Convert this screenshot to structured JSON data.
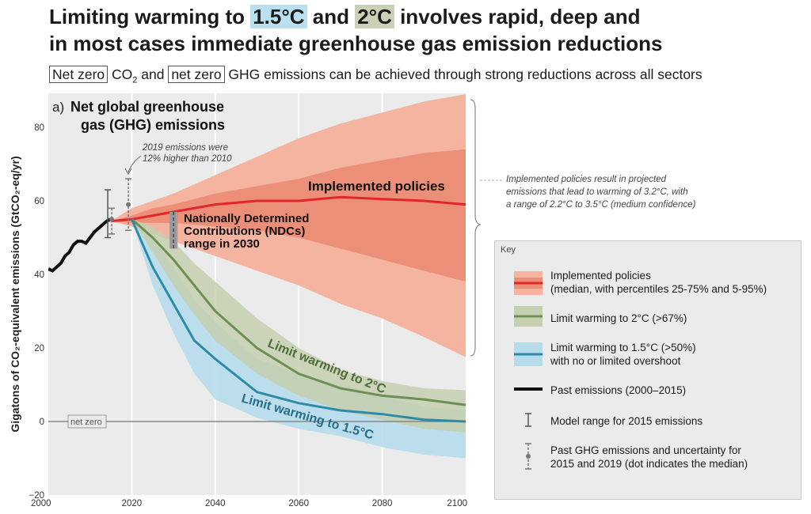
{
  "headline": {
    "pre": "Limiting warming to ",
    "hl1": "1.5°C",
    "mid": " and ",
    "hl2": "2°C",
    "post": " involves rapid, deep and",
    "line2": "in most cases immediate greenhouse gas emission reductions"
  },
  "subtitle": {
    "box1": "Net zero",
    "co2": " CO",
    "co2_sub": "2",
    "and": " and ",
    "box2": "net zero",
    "rest": " GHG emissions can be achieved through strong reductions across all sectors"
  },
  "colors": {
    "implemented_band": "#f4b4a0",
    "implemented_core": "#ec8f78",
    "implemented_line": "#e3262e",
    "two_c_band": "#c6cfb0",
    "two_c_line": "#6d8f55",
    "one_five_band": "#b6dcec",
    "one_five_line": "#2f8aa6",
    "past_line": "#111111",
    "plot_bg": "#ebebeb"
  },
  "chart_data": {
    "type": "line",
    "panel_title": "a) Net global greenhouse gas (GHG) emissions",
    "panel_title_lines": [
      "Net global greenhouse",
      "gas (GHG) emissions"
    ],
    "panel_letter": "a)",
    "ylabel": "Gigatons of CO₂-equivalent emissions (GtCO₂-eq/yr)",
    "xlim": [
      2000,
      2100
    ],
    "ylim": [
      -20,
      95
    ],
    "x_ticks": [
      2000,
      2020,
      2040,
      2060,
      2080,
      2100
    ],
    "y_ticks": [
      -20,
      0,
      20,
      40,
      60,
      80
    ],
    "series": [
      {
        "name": "Implemented policies",
        "x": [
          2015,
          2020,
          2025,
          2030,
          2040,
          2050,
          2060,
          2070,
          2080,
          2090,
          2100
        ],
        "median": [
          54.5,
          55,
          56,
          57,
          59,
          60,
          60,
          61,
          60.5,
          60,
          59
        ],
        "p25": [
          54.5,
          54,
          54,
          54,
          53,
          52,
          50,
          47,
          44,
          41,
          38
        ],
        "p75": [
          54.5,
          56,
          58,
          59,
          62,
          64,
          66,
          69,
          71,
          73,
          74
        ],
        "p5": [
          54.5,
          53,
          51,
          49,
          45,
          41,
          37,
          32,
          28,
          23,
          17.5
        ],
        "p95": [
          54.5,
          58,
          60,
          62,
          67,
          72,
          77,
          81,
          84,
          87,
          89
        ]
      },
      {
        "name": "Limit warming to 2°C",
        "x": [
          2020,
          2025,
          2030,
          2035,
          2040,
          2050,
          2060,
          2070,
          2080,
          2090,
          2100
        ],
        "median": [
          55,
          50,
          44,
          37,
          30,
          20,
          13,
          9,
          7,
          6,
          4.5
        ],
        "low": [
          55,
          46,
          37,
          29,
          22,
          13,
          7,
          3,
          0.5,
          -2,
          -3
        ],
        "high": [
          55,
          53,
          49,
          43,
          38,
          28,
          20,
          14,
          11,
          9,
          8.5
        ]
      },
      {
        "name": "Limit warming to 1.5°C",
        "x": [
          2020,
          2025,
          2030,
          2035,
          2040,
          2050,
          2060,
          2070,
          2080,
          2090,
          2100
        ],
        "median": [
          55,
          42,
          32,
          22,
          17,
          8,
          5,
          3,
          2,
          0.5,
          0
        ],
        "low": [
          55,
          37,
          24,
          13,
          6,
          1,
          -2,
          -4,
          -7,
          -9,
          -10
        ],
        "high": [
          55,
          50,
          42,
          33,
          27,
          17,
          13,
          10,
          7,
          4,
          3
        ]
      },
      {
        "name": "Past emissions (2000–2015)",
        "x": [
          2000,
          2001,
          2002,
          2003,
          2004,
          2005,
          2006,
          2007,
          2008,
          2009,
          2010,
          2011,
          2012,
          2013,
          2014,
          2015
        ],
        "y": [
          41.5,
          41,
          42,
          43,
          45,
          46,
          48,
          49,
          49,
          48.5,
          50,
          51.5,
          52.5,
          53.5,
          54.5,
          55
        ]
      }
    ],
    "model_range_2015": {
      "x": 2015,
      "low": 50,
      "high": 63
    },
    "past_uncertainty": [
      {
        "x": 2015,
        "low": 51,
        "high": 58,
        "median": 55
      },
      {
        "x": 2019,
        "low": 52,
        "high": 66,
        "median": 59
      }
    ],
    "ndc_range_2030": {
      "x": 2030,
      "low": 47,
      "high": 57
    },
    "annotations": {
      "emissions_2019": [
        "2019 emissions were",
        "12% higher than 2010"
      ],
      "ndcs": [
        "Nationally Determined",
        "Contributions (NDCs)",
        "range in 2030"
      ],
      "implemented_label": "Implemented policies",
      "two_c_label": "Limit warming to 2°C",
      "one_five_label": "Limit warming to 1.5°C",
      "net_zero": "net zero",
      "brace_note": [
        "Implemented policies result in projected",
        "emissions that lead to warming of 3.2°C, with",
        "a range of 2.2°C to 3.5°C (medium confidence)"
      ]
    }
  },
  "key": {
    "title": "Key",
    "items": [
      {
        "lines": [
          "Implemented policies",
          "(median, with percentiles 25-75% and 5-95%)"
        ]
      },
      {
        "lines": [
          "Limit warming to 2°C (>67%)"
        ]
      },
      {
        "lines": [
          "Limit warming to 1.5°C (>50%)",
          "with no or limited overshoot"
        ]
      },
      {
        "lines": [
          "Past emissions (2000–2015)"
        ]
      },
      {
        "lines": [
          "Model range for 2015 emissions"
        ]
      },
      {
        "lines": [
          "Past GHG emissions and uncertainty for",
          "2015 and 2019 (dot indicates the median)"
        ]
      }
    ]
  }
}
